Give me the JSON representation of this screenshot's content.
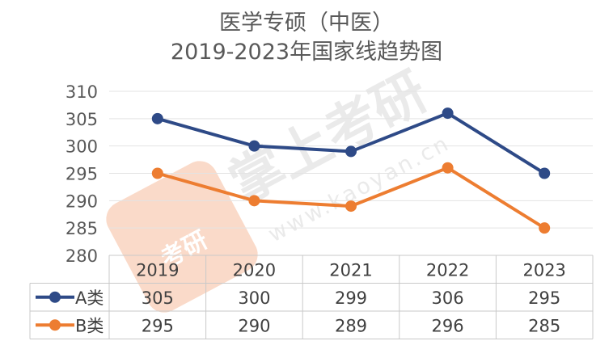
{
  "chart_data": {
    "type": "line",
    "title": "医学专硕（中医）",
    "subtitle": "2019-2023年国家线趋势图",
    "categories": [
      "2019",
      "2020",
      "2021",
      "2022",
      "2023"
    ],
    "series": [
      {
        "name": "A类",
        "values": [
          305,
          300,
          299,
          306,
          295
        ],
        "color": "#2e4a87"
      },
      {
        "name": "B类",
        "values": [
          295,
          290,
          289,
          296,
          285
        ],
        "color": "#ed7d31"
      }
    ],
    "ylim": [
      280,
      310
    ],
    "yticks": [
      280,
      285,
      290,
      295,
      300,
      305,
      310
    ],
    "grid": true,
    "legend": "data-table"
  },
  "watermark": {
    "brand": "掌上考研",
    "url": "www.kaoyan.cn",
    "logo_chars": "考研",
    "logo_color": "#f4a77c"
  }
}
